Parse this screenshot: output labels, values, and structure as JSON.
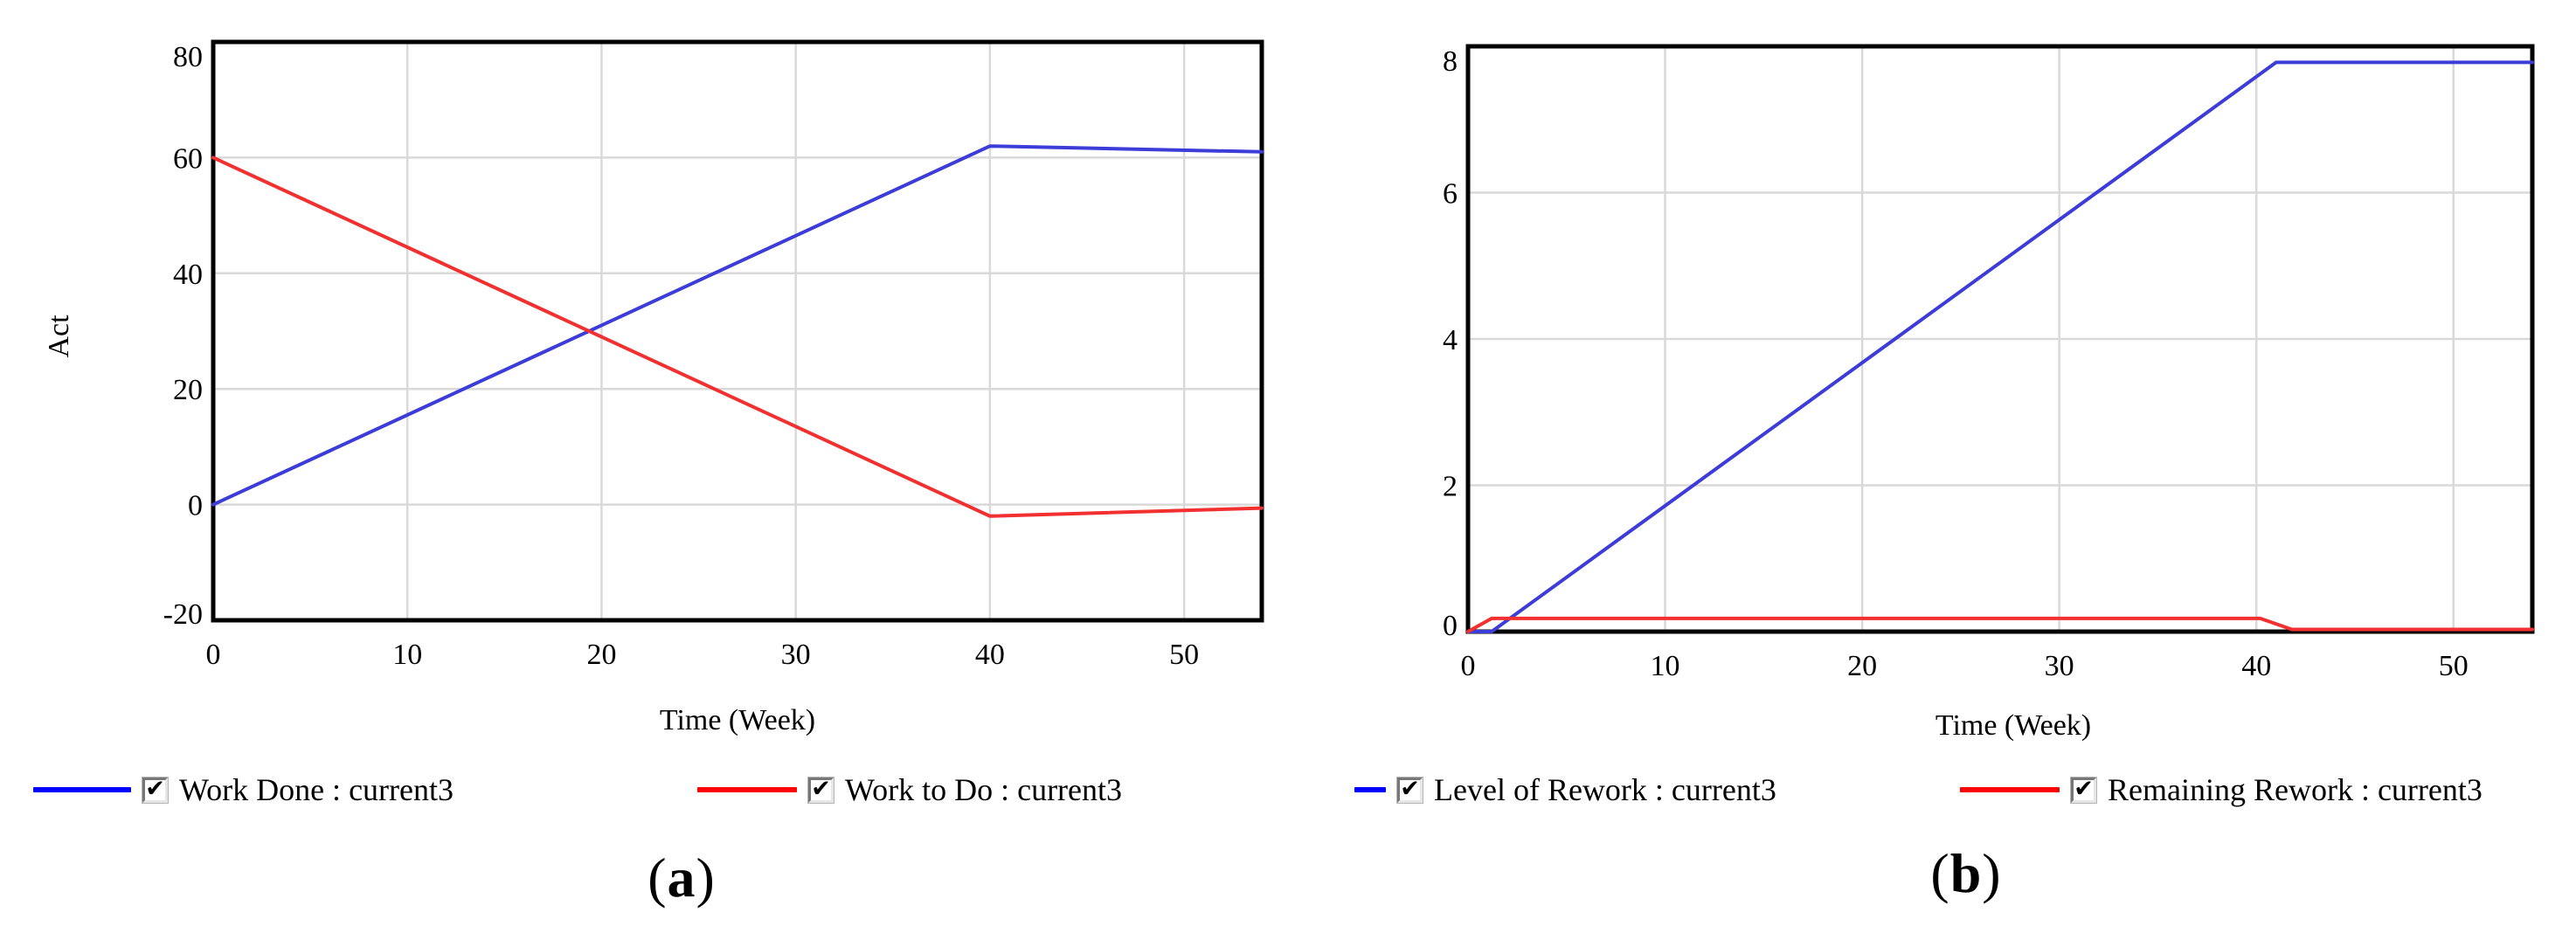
{
  "chart_data": [
    {
      "id": "a",
      "type": "line",
      "caption": {
        "open": "(",
        "letter": "a",
        "close": ")"
      },
      "x_title": "Time (Week)",
      "y_title": "Act",
      "x_range": [
        0,
        54
      ],
      "y_range": [
        -20,
        80
      ],
      "x_ticks": [
        0,
        10,
        20,
        30,
        40,
        50
      ],
      "y_ticks": [
        80,
        60,
        40,
        20,
        0,
        -20
      ],
      "grid": true,
      "legend_position": "bottom",
      "series": [
        {
          "name": "Work Done : current3",
          "color": "#3c3cd9",
          "points": [
            [
              0,
              0
            ],
            [
              40,
              62
            ],
            [
              54,
              61
            ]
          ]
        },
        {
          "name": "Work to Do : current3",
          "color": "#f23030",
          "points": [
            [
              0,
              60
            ],
            [
              40,
              -2
            ],
            [
              54,
              -0.6
            ]
          ]
        }
      ],
      "legend": [
        {
          "label": "Work Done : current3",
          "color": "#0000ff",
          "marker_width": 112,
          "checked": true
        },
        {
          "label": "Work to Do : current3",
          "color": "#ff0000",
          "marker_width": 114,
          "checked": true
        }
      ]
    },
    {
      "id": "b",
      "type": "line",
      "caption": {
        "open": "(",
        "letter": "b",
        "close": ")"
      },
      "x_title": "Time (Week)",
      "y_title": "",
      "x_range": [
        0,
        54
      ],
      "y_range": [
        0,
        8
      ],
      "x_ticks": [
        0,
        10,
        20,
        30,
        40,
        50
      ],
      "y_ticks": [
        8,
        6,
        4,
        2,
        0
      ],
      "grid": true,
      "legend_position": "bottom",
      "series": [
        {
          "name": "Level of Rework : current3",
          "color": "#3c3cd9",
          "points": [
            [
              0,
              0
            ],
            [
              1.2,
              0
            ],
            [
              41,
              7.78
            ],
            [
              54,
              7.78
            ]
          ]
        },
        {
          "name": "Remaining Rework : current3",
          "color": "#f23030",
          "points": [
            [
              0,
              0
            ],
            [
              1.2,
              0.18
            ],
            [
              40.2,
              0.18
            ],
            [
              41.8,
              0.03
            ],
            [
              54,
              0.03
            ]
          ]
        }
      ],
      "legend": [
        {
          "label": "Level of Rework : current3",
          "color": "#0000ff",
          "marker_width": 36,
          "checked": true
        },
        {
          "label": "Remaining Rework : current3",
          "color": "#ff0000",
          "marker_width": 114,
          "checked": true
        }
      ]
    }
  ]
}
